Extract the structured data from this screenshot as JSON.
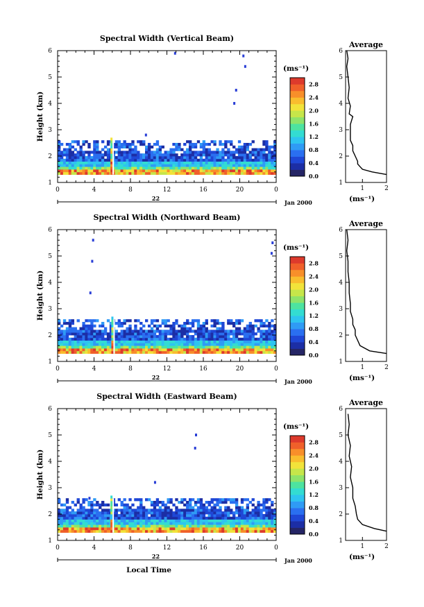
{
  "figure": {
    "x_tick_labels": [
      "0",
      "4",
      "8",
      "12",
      "16",
      "20",
      "0"
    ],
    "day_label": "22",
    "date_label": "Jan 2000",
    "bottom_xlabel": "Local Time"
  },
  "chart_data": [
    {
      "type": "heatmap",
      "title": "Spectral Width (Vertical Beam)",
      "ylabel": "Height (km)",
      "xlim": [
        0,
        24
      ],
      "ylim": [
        1,
        6
      ],
      "y_ticks": [
        "1",
        "2",
        "3",
        "4",
        "5",
        "6"
      ],
      "colorbar": {
        "unit": "(ms⁻¹)",
        "ticks": [
          "0.0",
          "0.4",
          "0.8",
          "1.2",
          "1.6",
          "2.0",
          "2.4",
          "2.8"
        ],
        "range": [
          0,
          3.0
        ]
      },
      "echo_layer_top_km": 2.4,
      "spike_time_h": 5.8,
      "isolated_echoes": [
        {
          "t": 12.9,
          "h": 5.9
        },
        {
          "t": 9.7,
          "h": 2.8
        },
        {
          "t": 20.4,
          "h": 5.8
        },
        {
          "t": 20.6,
          "h": 5.4
        },
        {
          "t": 19.6,
          "h": 4.5
        },
        {
          "t": 19.4,
          "h": 4.0
        }
      ],
      "average": {
        "title": "Average",
        "xlabel": "(ms⁻¹)",
        "xlim": [
          0.3,
          2.0
        ],
        "x_ticks": [
          "1",
          "2"
        ],
        "profile": [
          [
            2.0,
            1.3
          ],
          [
            1.4,
            1.4
          ],
          [
            1.0,
            1.5
          ],
          [
            0.9,
            1.6
          ],
          [
            0.8,
            1.7
          ],
          [
            0.8,
            1.8
          ],
          [
            0.7,
            2.0
          ],
          [
            0.6,
            2.2
          ],
          [
            0.6,
            2.4
          ],
          [
            0.5,
            2.6
          ],
          [
            0.5,
            2.9
          ],
          [
            0.5,
            3.2
          ],
          [
            0.6,
            3.5
          ],
          [
            0.45,
            3.6
          ],
          [
            0.5,
            3.9
          ],
          [
            0.4,
            4.2
          ],
          [
            0.45,
            4.6
          ],
          [
            0.4,
            5.0
          ],
          [
            0.35,
            5.4
          ],
          [
            0.4,
            5.7
          ],
          [
            0.35,
            6.0
          ]
        ]
      }
    },
    {
      "type": "heatmap",
      "title": "Spectral Width (Northward Beam)",
      "ylabel": "Height (km)",
      "xlim": [
        0,
        24
      ],
      "ylim": [
        1,
        6
      ],
      "y_ticks": [
        "1",
        "2",
        "3",
        "4",
        "5",
        "6"
      ],
      "colorbar": {
        "unit": "(ms⁻¹)",
        "ticks": [
          "0.0",
          "0.4",
          "0.8",
          "1.2",
          "1.6",
          "2.0",
          "2.4",
          "2.8"
        ],
        "range": [
          0,
          3.0
        ]
      },
      "echo_layer_top_km": 2.4,
      "spike_time_h": 5.9,
      "isolated_echoes": [
        {
          "t": 3.9,
          "h": 5.6
        },
        {
          "t": 3.8,
          "h": 4.8
        },
        {
          "t": 3.6,
          "h": 3.6
        },
        {
          "t": 23.6,
          "h": 5.5
        },
        {
          "t": 23.5,
          "h": 5.1
        }
      ],
      "average": {
        "title": "Average",
        "xlabel": "(ms⁻¹)",
        "xlim": [
          0.3,
          2.0
        ],
        "x_ticks": [
          "1",
          "2"
        ],
        "profile": [
          [
            2.0,
            1.3
          ],
          [
            1.3,
            1.4
          ],
          [
            0.9,
            1.6
          ],
          [
            0.8,
            1.8
          ],
          [
            0.7,
            2.0
          ],
          [
            0.7,
            2.2
          ],
          [
            0.6,
            2.4
          ],
          [
            0.6,
            2.6
          ],
          [
            0.5,
            2.9
          ],
          [
            0.5,
            3.2
          ],
          [
            0.45,
            3.6
          ],
          [
            0.45,
            4.0
          ],
          [
            0.4,
            4.4
          ],
          [
            0.4,
            4.8
          ],
          [
            0.35,
            5.2
          ],
          [
            0.4,
            5.6
          ],
          [
            0.35,
            6.0
          ]
        ]
      }
    },
    {
      "type": "heatmap",
      "title": "Spectral Width (Eastward Beam)",
      "ylabel": "Height (km)",
      "xlim": [
        0,
        24
      ],
      "ylim": [
        1,
        6
      ],
      "y_ticks": [
        "1",
        "2",
        "3",
        "4",
        "5",
        "6"
      ],
      "colorbar": {
        "unit": "(ms⁻¹)",
        "ticks": [
          "0.0",
          "0.4",
          "0.8",
          "1.2",
          "1.6",
          "2.0",
          "2.4",
          "2.8"
        ],
        "range": [
          0,
          3.0
        ]
      },
      "echo_layer_top_km": 2.4,
      "spike_time_h": 5.8,
      "isolated_echoes": [
        {
          "t": 3.5,
          "h": 2.6
        },
        {
          "t": 10.7,
          "h": 3.2
        },
        {
          "t": 15.2,
          "h": 5.0
        },
        {
          "t": 15.1,
          "h": 4.5
        }
      ],
      "average": {
        "title": "Average",
        "xlabel": "(ms⁻¹)",
        "xlim": [
          0.3,
          2.0
        ],
        "x_ticks": [
          "1",
          "2"
        ],
        "profile": [
          [
            2.0,
            1.35
          ],
          [
            1.5,
            1.45
          ],
          [
            1.0,
            1.6
          ],
          [
            0.8,
            1.8
          ],
          [
            0.75,
            2.0
          ],
          [
            0.7,
            2.3
          ],
          [
            0.6,
            2.6
          ],
          [
            0.6,
            3.0
          ],
          [
            0.5,
            3.4
          ],
          [
            0.55,
            3.8
          ],
          [
            0.45,
            4.2
          ],
          [
            0.5,
            4.6
          ],
          [
            0.4,
            5.0
          ],
          [
            0.45,
            5.4
          ],
          [
            0.4,
            5.8
          ]
        ]
      }
    }
  ]
}
